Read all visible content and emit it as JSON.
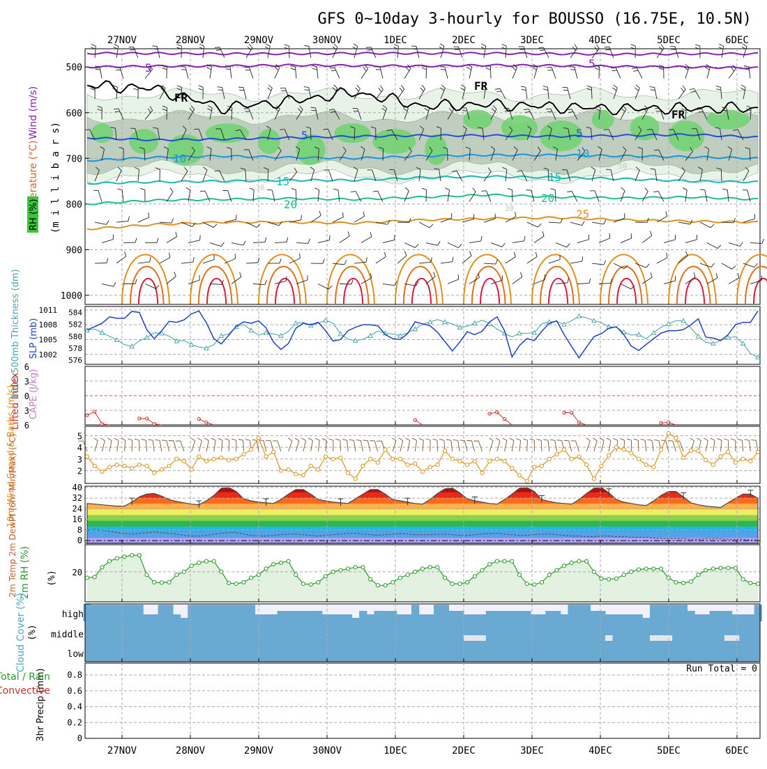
{
  "chart_data": {
    "type": "meteogram",
    "title": "GFS 0~10day 3-hourly for BOUSSO (16.75E, 10.5N)",
    "dates": [
      "27NOV",
      "28NOV",
      "29NOV",
      "30NOV",
      "1DEC",
      "2DEC",
      "3DEC",
      "4DEC",
      "5DEC",
      "6DEC"
    ],
    "colors": {
      "purple": "#8a1fb4",
      "black": "#000000",
      "blue": "#1f4fd6",
      "lightblue": "#1996d8",
      "teal": "#17b9b3",
      "green": "#1ec08a",
      "orange": "#e0901c",
      "darkorange": "#e0701c",
      "red": "#d81c3c",
      "rh_light": "#e6f2e6",
      "rh_mid": "#bccabc",
      "rh_green": "#72d472",
      "cloud": "#6aaad2",
      "cloud_bg": "#f2f0f8",
      "pwat": "#4fa7a8",
      "slp": "#1f3fcc",
      "wind10": "#e0941c",
      "barb10": "#7a5530",
      "rh2m": "#2a9a2a",
      "cape": "#c878c8",
      "li": "#d22a2a"
    },
    "panels": {
      "upper": {
        "ylabel_wind": "Wind (m/s)",
        "ylabel_temp": "Temperature (°C)",
        "ylabel_rh": "RH (%)",
        "ylabel_pres": "(m i l l i b a r s)",
        "y_ticks": [
          500,
          600,
          700,
          800,
          900,
          1000
        ],
        "ylim": [
          460,
          1020
        ],
        "contour_labels": [
          {
            "text": "5",
            "color": "purple"
          },
          {
            "text": "5",
            "color": "purple"
          },
          {
            "text": "FR",
            "color": "black"
          },
          {
            "text": "FR",
            "color": "black"
          },
          {
            "text": "FR",
            "color": "black"
          },
          {
            "text": "5",
            "color": "blue"
          },
          {
            "text": "5",
            "color": "blue"
          },
          {
            "text": "10",
            "color": "lightblue"
          },
          {
            "text": "10",
            "color": "lightblue"
          },
          {
            "text": "15",
            "color": "teal"
          },
          {
            "text": "15",
            "color": "teal"
          },
          {
            "text": "20",
            "color": "green"
          },
          {
            "text": "20",
            "color": "green"
          },
          {
            "text": "25",
            "color": "orange"
          },
          {
            "text": "30",
            "color": "rh_mid"
          },
          {
            "text": "30",
            "color": "rh_mid"
          },
          {
            "text": "50",
            "color": "rh_mid"
          }
        ],
        "levels": {
          "purple_top": [
            470,
            470,
            471,
            471,
            470,
            470,
            470,
            471,
            472,
            471,
            471
          ],
          "purple_5": [
            500,
            498,
            498,
            496,
            497,
            498,
            496,
            497,
            499,
            500,
            502
          ],
          "freezing": [
            540,
            548,
            590,
            575,
            555,
            585,
            582,
            588,
            592,
            590,
            590
          ],
          "blue_5": [
            655,
            660,
            658,
            655,
            652,
            650,
            650,
            652,
            650,
            648,
            654
          ],
          "lightblue_10": [
            705,
            698,
            695,
            698,
            700,
            695,
            693,
            693,
            695,
            697,
            700
          ],
          "teal_15": [
            755,
            752,
            750,
            748,
            748,
            742,
            740,
            742,
            745,
            750,
            752
          ],
          "green_20": [
            800,
            792,
            790,
            788,
            790,
            785,
            780,
            785,
            787,
            785,
            790
          ],
          "orange_25": [
            855,
            845,
            840,
            840,
            842,
            835,
            832,
            830,
            835,
            838,
            840
          ]
        }
      },
      "thickness": {
        "ylabel_thick": "1000-500mb Thickness (dm)",
        "ylabel_slp": "SLP (mb)",
        "left_ticks": [
          576,
          578,
          580,
          582,
          584
        ],
        "right_ticks": [
          1002,
          1005,
          1008,
          1011
        ],
        "left_lim": [
          575.3,
          585.0
        ],
        "right_lim": [
          1000.0,
          1011.7
        ],
        "slp": [
          1007.0,
          1007.6,
          1008.3,
          1009.6,
          1009.3,
          1009.3,
          1010.7,
          1010.5,
          1007.0,
          1005.2,
          1006.8,
          1008.7,
          1008.5,
          1009.0,
          1010.2,
          1010.8,
          1008.4,
          1005.2,
          1004.1,
          1005.9,
          1007.7,
          1008.6,
          1008.3,
          1008.8,
          1007.4,
          1004.5,
          1003.0,
          1004.2,
          1007.3,
          1008.3,
          1008.0,
          1008.5,
          1006.8,
          1004.7,
          1005.0,
          1006.8,
          1007.5,
          1008.0,
          1008.0,
          1007.8,
          1006.0,
          1005.2,
          1005.0,
          1006.2,
          1008.6,
          1008.2,
          1007.8,
          1006.5,
          1004.6,
          1002.7,
          1004.5,
          1006.6,
          1006.0,
          1006.7,
          1008.6,
          1009.6,
          1006.8,
          1001.5,
          1003.8,
          1005.2,
          1004.8,
          1006.7,
          1008.3,
          1008.8,
          1006.0,
          1003.6,
          1001.3,
          1003.5,
          1005.6,
          1006.2,
          1007.3,
          1007.6,
          1006.0,
          1003.7,
          1002.8,
          1004.0,
          1005.2,
          1006.3,
          1006.8,
          1006.8,
          1007.0,
          1008.0,
          1009.2,
          1005.5,
          1005.3,
          1004.8,
          1006.0,
          1008.0,
          1008.5,
          1008.5,
          1010.8
        ],
        "thickness": [
          581.0,
          581.2,
          580.6,
          580.0,
          579.4,
          578.6,
          578.3,
          579.2,
          579.8,
          580.6,
          580.5,
          580.0,
          579.2,
          579.3,
          578.6,
          578.2,
          578.0,
          578.6,
          580.1,
          580.4,
          581.6,
          582.0,
          581.0,
          580.2,
          580.6,
          580.4,
          580.1,
          580.8,
          582.2,
          582.3,
          581.8,
          582.2,
          582.7,
          582.2,
          580.4,
          579.5,
          579.3,
          579.5,
          580.1,
          580.9,
          580.5,
          580.4,
          580.1,
          580.6,
          581.2,
          582.0,
          582.4,
          582.8,
          582.4,
          582.1,
          581.5,
          581.7,
          582.2,
          582.7,
          582.1,
          581.2,
          580.5,
          579.9,
          580.5,
          580.5,
          580.6,
          582.1,
          582.4,
          582.5,
          582.0,
          582.6,
          583.4,
          583.1,
          582.6,
          582.3,
          581.6,
          581.5,
          580.7,
          580.2,
          580.3,
          579.6,
          580.6,
          581.5,
          582.1,
          582.6,
          582.6,
          581.4,
          580.0,
          579.0,
          578.8,
          579.3,
          579.8,
          579.9,
          578.8,
          577.1,
          576.5
        ]
      },
      "cape": {
        "ylabel_li": "Lifted Index",
        "ylabel_cape": "CAPE (J/kg)",
        "y_ticks": [
          "6",
          "3",
          "0",
          "3",
          "6"
        ],
        "y_values": [
          -6,
          -3,
          0,
          3,
          6
        ],
        "ylim": [
          -6,
          6
        ],
        "lifted_index": [
          4.0,
          3.3,
          5.8,
          6.0,
          6.0,
          6.0,
          6.0,
          4.7,
          4.7,
          5.8,
          6.0,
          6.0,
          6.0,
          6.0,
          6.0,
          4.8,
          5.5,
          6.0,
          6.0,
          6.0,
          6.0,
          6.0,
          6.0,
          6.0,
          6.0,
          6.0,
          6.0,
          6.0,
          6.0,
          6.0,
          6.0,
          6.0,
          6.0,
          6.0,
          6.0,
          6.0,
          6.0,
          6.0,
          6.0,
          6.0,
          6.0,
          6.0,
          6.0,
          6.0,
          5.0,
          6.0,
          6.0,
          6.0,
          6.0,
          6.0,
          6.0,
          6.0,
          6.0,
          6.0,
          3.7,
          3.4,
          4.8,
          6.0,
          6.0,
          6.0,
          6.0,
          6.0,
          6.0,
          6.0,
          3.5,
          3.5,
          5.5,
          6.0,
          6.0,
          6.0,
          6.0,
          6.0,
          6.0,
          6.0,
          6.0,
          6.0,
          6.0,
          5.6,
          5.5,
          6.0,
          6.0,
          6.0,
          6.0,
          6.0,
          6.0,
          6.0,
          6.0,
          6.0,
          6.0,
          6.0,
          6.0
        ]
      },
      "wind10": {
        "ylabel": "10m Wind Speed & Barbs (m/s)",
        "y_ticks": [
          2,
          3,
          4,
          5
        ],
        "ylim": [
          0.9,
          5.8
        ],
        "speed": [
          3.2,
          2.4,
          1.9,
          2.3,
          2.5,
          2.4,
          2.2,
          2.5,
          2.4,
          1.8,
          2.1,
          2.4,
          3.0,
          2.8,
          2.1,
          3.2,
          2.8,
          3.0,
          3.1,
          2.9,
          3.0,
          3.4,
          3.8,
          4.8,
          3.2,
          3.6,
          2.0,
          2.1,
          1.7,
          1.6,
          2.4,
          2.1,
          3.2,
          3.0,
          3.1,
          1.8,
          1.3,
          2.4,
          3.0,
          2.7,
          3.8,
          3.0,
          3.0,
          2.5,
          2.6,
          1.9,
          2.3,
          2.5,
          3.7,
          3.0,
          2.8,
          2.5,
          2.8,
          1.8,
          2.8,
          3.0,
          2.8,
          2.2,
          1.6,
          1.1,
          2.3,
          2.4,
          3.0,
          3.4,
          3.8,
          3.0,
          3.2,
          2.5,
          1.3,
          2.4,
          3.3,
          4.0,
          3.8,
          3.5,
          3.0,
          2.5,
          2.3,
          3.8,
          5.2,
          4.8,
          3.1,
          3.7,
          3.7,
          2.9,
          2.5,
          3.2,
          3.6,
          2.7,
          3.0,
          2.8,
          3.6
        ]
      },
      "temp2m": {
        "ylabel": "2m Temp 2m DewPt (6hr Min/Max) (°C)",
        "y_ticks": [
          0,
          8,
          16,
          24,
          32,
          40
        ],
        "ylim": [
          -2,
          41
        ],
        "temp": [
          28.0,
          27.5,
          27.0,
          26.5,
          26.0,
          26.0,
          29.0,
          33.0,
          35.0,
          35.5,
          33.5,
          31.0,
          29.5,
          28.5,
          27.5,
          27.0,
          30.0,
          34.0,
          39.5,
          40.0,
          37.0,
          31.5,
          30.0,
          29.0,
          28.5,
          28.0,
          31.0,
          35.0,
          38.5,
          38.5,
          35.0,
          31.0,
          30.0,
          29.0,
          28.5,
          28.0,
          31.5,
          35.0,
          38.5,
          38.5,
          35.0,
          31.0,
          30.0,
          29.0,
          28.0,
          27.5,
          31.0,
          35.5,
          39.0,
          39.5,
          36.0,
          31.5,
          30.0,
          29.0,
          28.0,
          27.5,
          31.0,
          35.0,
          39.5,
          40.0,
          37.0,
          31.0,
          29.5,
          28.5,
          28.0,
          27.5,
          31.0,
          35.5,
          39.5,
          40.0,
          36.0,
          31.0,
          29.0,
          28.0,
          27.0,
          26.5,
          30.0,
          34.0,
          37.0,
          37.0,
          33.0,
          28.5,
          27.0,
          26.0,
          25.5,
          25.0,
          28.5,
          32.0,
          35.0,
          35.0,
          32.0
        ],
        "dewpt": [
          8.0,
          8.5,
          8.0,
          7.0,
          6.0,
          5.5,
          5.0,
          5.5,
          6.0,
          6.5,
          6.0,
          5.5,
          5.0,
          4.0,
          3.5,
          3.5,
          4.0,
          5.0,
          5.5,
          6.0,
          6.0,
          5.0,
          4.0,
          3.5,
          3.5,
          4.0,
          4.5,
          5.0,
          5.0,
          4.5,
          4.0,
          3.5,
          4.0,
          4.5,
          5.0,
          5.5,
          5.5,
          5.0,
          4.5,
          4.0,
          4.5,
          5.0,
          5.5,
          5.0,
          4.5,
          4.5,
          4.5,
          5.0,
          5.0,
          4.5,
          4.0,
          4.0,
          4.5,
          5.0,
          5.5,
          5.5,
          5.0,
          4.5,
          4.0,
          4.0,
          4.5,
          5.0,
          5.0,
          4.5,
          4.0,
          3.5,
          3.5,
          3.0,
          3.0,
          3.5,
          3.5,
          3.0,
          3.0,
          2.5,
          2.5,
          2.5,
          2.0,
          1.5,
          1.5,
          1.5,
          1.5,
          1.0,
          1.0,
          1.5,
          1.5,
          1.5,
          1.0,
          1.0,
          1.0,
          0.5,
          0.5
        ]
      },
      "rh2m": {
        "ylabel": "2m RH (%)",
        "y_ticks": [
          20
        ],
        "ylim": [
          0,
          38
        ],
        "rh": [
          16.0,
          16.5,
          23.0,
          27.0,
          29.0,
          30.0,
          31.0,
          31.0,
          18.0,
          13.0,
          12.8,
          13.0,
          18.0,
          20.0,
          24.0,
          26.0,
          27.0,
          27.0,
          20.0,
          12.5,
          12.0,
          13.0,
          16.0,
          18.0,
          22.0,
          25.0,
          26.0,
          27.0,
          18.0,
          12.0,
          11.5,
          13.0,
          17.0,
          20.0,
          21.0,
          22.0,
          23.0,
          23.0,
          15.0,
          11.0,
          11.0,
          13.0,
          16.0,
          18.0,
          20.0,
          22.0,
          23.0,
          23.0,
          16.0,
          12.0,
          12.0,
          13.0,
          17.0,
          21.0,
          25.0,
          27.0,
          27.0,
          27.0,
          18.0,
          12.0,
          11.5,
          13.0,
          18.0,
          21.0,
          24.0,
          26.0,
          27.0,
          27.0,
          20.0,
          15.5,
          15.0,
          15.5,
          18.0,
          20.0,
          21.5,
          22.0,
          22.0,
          22.0,
          16.0,
          13.0,
          12.5,
          13.5,
          18.0,
          21.0,
          22.0,
          22.5,
          22.5,
          22.5,
          15.0,
          12.5,
          12.0
        ]
      },
      "cloud": {
        "ylabel": "Cloud Cover (%)",
        "labels": [
          "high",
          "middle",
          "low"
        ],
        "high": [
          100,
          95,
          95,
          95,
          95,
          95,
          95,
          95,
          40,
          40,
          95,
          95,
          40,
          20,
          95,
          95,
          95,
          95,
          95,
          95,
          95,
          95,
          95,
          40,
          40,
          40,
          60,
          60,
          60,
          60,
          60,
          60,
          40,
          40,
          40,
          40,
          20,
          60,
          40,
          60,
          60,
          60,
          40,
          40,
          95,
          40,
          40,
          95,
          95,
          60,
          60,
          40,
          40,
          40,
          60,
          60,
          60,
          60,
          60,
          60,
          40,
          40,
          60,
          60,
          40,
          95,
          95,
          95,
          60,
          60,
          40,
          40,
          40,
          40,
          40,
          20,
          95,
          95,
          95,
          95,
          95,
          60,
          40,
          40,
          60,
          60,
          60,
          40,
          40,
          40,
          95
        ],
        "middle_hits": [
          51,
          52,
          53,
          70,
          76,
          77,
          78,
          86,
          87
        ]
      },
      "precip": {
        "ylabel": "3hr Precip (mm)",
        "legend_total": "Total / Rain",
        "legend_conv": "Convective",
        "run_total": "Run Total = 0",
        "y_ticks": [
          "0",
          "0.2",
          "0.4",
          "0.6",
          "0.8"
        ],
        "ylim": [
          0,
          0.95
        ]
      }
    }
  }
}
